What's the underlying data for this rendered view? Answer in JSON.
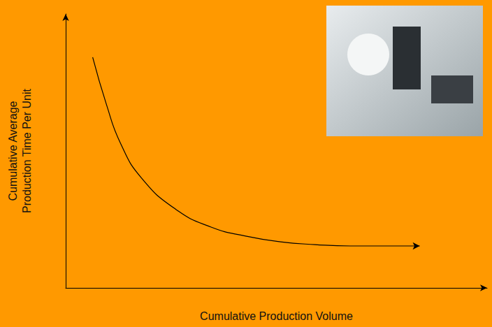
{
  "chart_data": {
    "type": "line",
    "x_label": "Cumulative Production Volume",
    "y_label": "Cumulative Average Production Time Per Unit",
    "x": [
      6.4,
      9.7,
      13.0,
      18.0,
      26.2,
      34.5,
      42.7,
      51.0,
      59.2,
      67.5,
      84.0
    ],
    "values": [
      84.2,
      66.8,
      52.8,
      40.1,
      28.6,
      22.2,
      18.9,
      16.8,
      15.8,
      15.3,
      15.3
    ],
    "color": "#000000",
    "line_style": "solid",
    "xlim": [
      0,
      100
    ],
    "ylim": [
      0,
      100
    ],
    "grid": false,
    "tick_labels": false
  }
}
